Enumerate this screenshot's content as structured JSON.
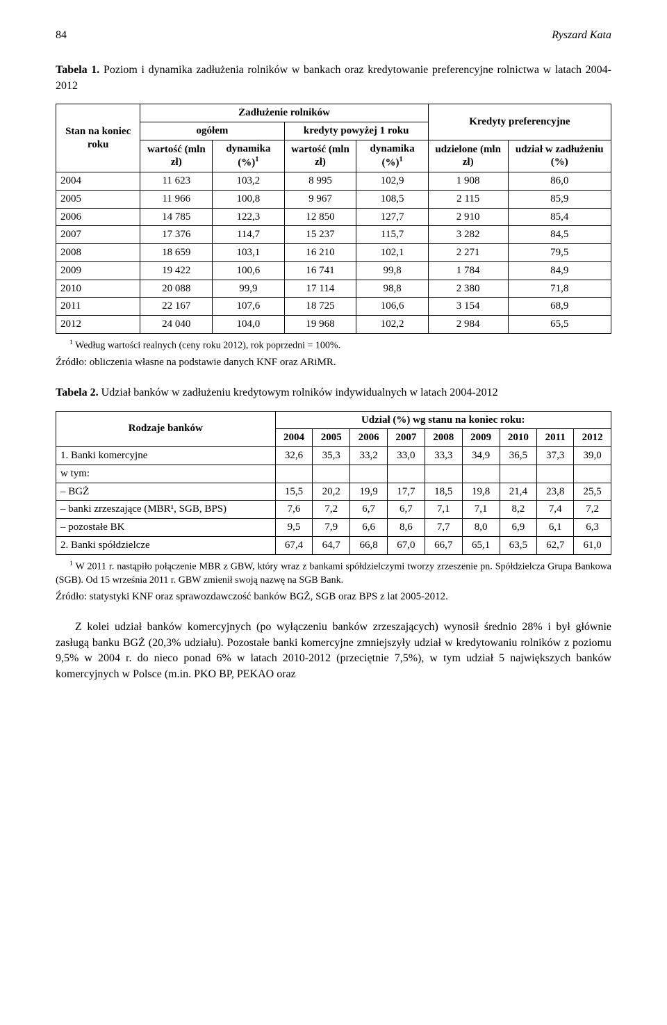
{
  "header": {
    "page_number": "84",
    "author": "Ryszard Kata"
  },
  "table1": {
    "caption_bold": "Tabela 1.",
    "caption_rest": " Poziom i dynamika zadłużenia rolników w bankach oraz kredytowanie preferencyjne rolnictwa w latach 2004-2012",
    "head": {
      "col0": "Stan na koniec roku",
      "zadluz": "Zadłużenie rolników",
      "ogolem": "ogółem",
      "kredyty_pow": "kredyty powyżej 1 roku",
      "kredyty_pref": "Kredyty preferencyjne",
      "wartosc": "wartość (mln zł)",
      "dynamika": "dynamika (%)",
      "udzielone": "udzielone (mln zł)",
      "udzial": "udział w zadłużeniu (%)"
    },
    "rows": [
      [
        "2004",
        "11 623",
        "103,2",
        "8 995",
        "102,9",
        "1 908",
        "86,0"
      ],
      [
        "2005",
        "11 966",
        "100,8",
        "9 967",
        "108,5",
        "2 115",
        "85,9"
      ],
      [
        "2006",
        "14 785",
        "122,3",
        "12 850",
        "127,7",
        "2 910",
        "85,4"
      ],
      [
        "2007",
        "17 376",
        "114,7",
        "15 237",
        "115,7",
        "3 282",
        "84,5"
      ],
      [
        "2008",
        "18 659",
        "103,1",
        "16 210",
        "102,1",
        "2 271",
        "79,5"
      ],
      [
        "2009",
        "19 422",
        "100,6",
        "16 741",
        "99,8",
        "1 784",
        "84,9"
      ],
      [
        "2010",
        "20 088",
        "99,9",
        "17 114",
        "98,8",
        "2 380",
        "71,8"
      ],
      [
        "2011",
        "22 167",
        "107,6",
        "18 725",
        "106,6",
        "3 154",
        "68,9"
      ],
      [
        "2012",
        "24 040",
        "104,0",
        "19 968",
        "102,2",
        "2 984",
        "65,5"
      ]
    ],
    "footnote_sup": "1",
    "footnote_text": " Według wartości realnych (ceny roku 2012), rok poprzedni = 100%.",
    "source": "Źródło: obliczenia własne na podstawie danych KNF oraz ARiMR."
  },
  "table2": {
    "caption_bold": "Tabela 2.",
    "caption_rest": " Udział banków w zadłużeniu kredytowym rolników indywidualnych w latach 2004-2012",
    "head": {
      "col0": "Rodzaje banków",
      "udzial": "Udział (%) wg stanu na koniec roku:",
      "years": [
        "2004",
        "2005",
        "2006",
        "2007",
        "2008",
        "2009",
        "2010",
        "2011",
        "2012"
      ]
    },
    "rows": [
      {
        "label": "1. Banki komercyjne",
        "vals": [
          "32,6",
          "35,3",
          "33,2",
          "33,0",
          "33,3",
          "34,9",
          "36,5",
          "37,3",
          "39,0"
        ]
      },
      {
        "label": "w tym:",
        "vals": [
          "",
          "",
          "",
          "",
          "",
          "",
          "",
          "",
          ""
        ]
      },
      {
        "label": "– BGŻ",
        "vals": [
          "15,5",
          "20,2",
          "19,9",
          "17,7",
          "18,5",
          "19,8",
          "21,4",
          "23,8",
          "25,5"
        ]
      },
      {
        "label": "– banki zrzeszające (MBR¹, SGB, BPS)",
        "vals": [
          "7,6",
          "7,2",
          "6,7",
          "6,7",
          "7,1",
          "7,1",
          "8,2",
          "7,4",
          "7,2"
        ]
      },
      {
        "label": "– pozostałe BK",
        "vals": [
          "9,5",
          "7,9",
          "6,6",
          "8,6",
          "7,7",
          "8,0",
          "6,9",
          "6,1",
          "6,3"
        ]
      },
      {
        "label": "2. Banki spółdzielcze",
        "vals": [
          "67,4",
          "64,7",
          "66,8",
          "67,0",
          "66,7",
          "65,1",
          "63,5",
          "62,7",
          "61,0"
        ]
      }
    ],
    "footnote_sup": "1",
    "footnote_text": " W 2011 r. nastąpiło połączenie MBR z GBW, który wraz z bankami spółdzielczymi tworzy zrzeszenie pn. Spółdzielcza Grupa Bankowa (SGB). Od 15 września 2011 r. GBW zmienił swoją nazwę na SGB Bank.",
    "source": "Źródło: statystyki KNF oraz sprawozdawczość banków BGŻ, SGB oraz BPS z lat 2005-2012."
  },
  "body_paragraph": "Z kolei udział banków komercyjnych (po wyłączeniu banków zrzeszających) wynosił średnio 28% i był głównie zasługą banku BGŻ (20,3% udziału). Pozostałe banki komercyjne zmniejszyły udział w kredytowaniu rolników z poziomu 9,5% w 2004 r. do nieco ponad 6% w latach 2010-2012 (przeciętnie 7,5%), w tym udział 5 największych banków komercyjnych w Polsce (m.in. PKO BP, PEKAO oraz"
}
